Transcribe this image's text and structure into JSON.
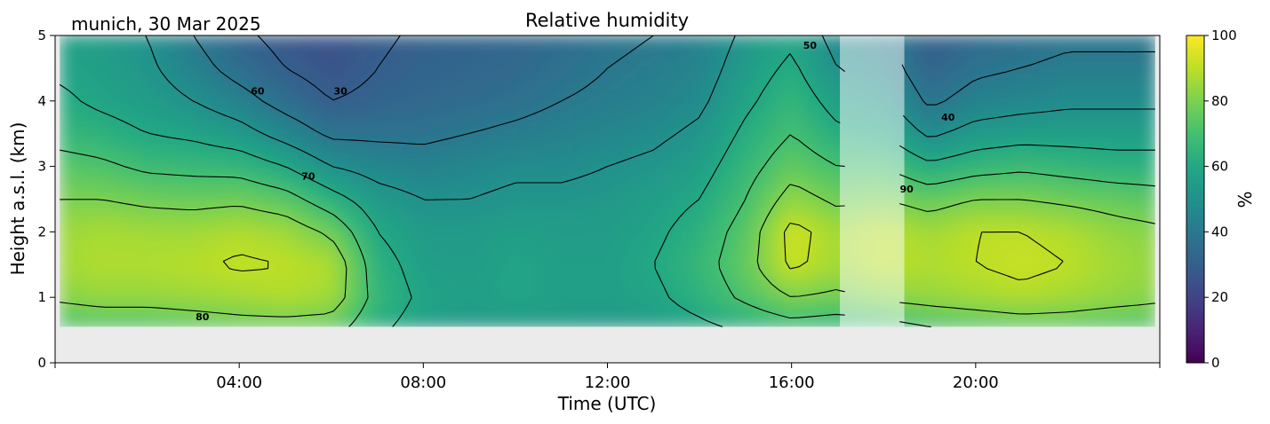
{
  "header": {
    "location_date": "munich, 30 Mar 2025"
  },
  "chart_data": {
    "type": "heatmap",
    "title": "Relative humidity",
    "xlabel": "Time (UTC)",
    "ylabel": "Height a.s.l. (km)",
    "colorbar_label": "%",
    "colormap": "viridis",
    "xlim_hours": [
      0,
      24
    ],
    "ylim_km": [
      0,
      5
    ],
    "clim": [
      0,
      100
    ],
    "x_ticks": [
      {
        "hour": 4,
        "label": "04:00"
      },
      {
        "hour": 8,
        "label": "08:00"
      },
      {
        "hour": 12,
        "label": "12:00"
      },
      {
        "hour": 16,
        "label": "16:00"
      },
      {
        "hour": 20,
        "label": "20:00"
      }
    ],
    "y_ticks": [
      {
        "value": 0,
        "label": "0"
      },
      {
        "value": 1,
        "label": "1"
      },
      {
        "value": 2,
        "label": "2"
      },
      {
        "value": 3,
        "label": "3"
      },
      {
        "value": 4,
        "label": "4"
      },
      {
        "value": 5,
        "label": "5"
      }
    ],
    "colorbar_ticks": [
      {
        "value": 0,
        "label": "0"
      },
      {
        "value": 20,
        "label": "20"
      },
      {
        "value": 40,
        "label": "40"
      },
      {
        "value": 60,
        "label": "60"
      },
      {
        "value": 80,
        "label": "80"
      },
      {
        "value": 100,
        "label": "100"
      }
    ],
    "data_start_hour": 0.1,
    "data_end_hour": 23.9,
    "data_bottom_km": 0.55,
    "masked_period_hours": [
      17.05,
      18.45
    ],
    "contour_levels": [
      30,
      40,
      50,
      60,
      70,
      80,
      90
    ],
    "contour_labels": [
      {
        "text": "30",
        "hour": 6.2,
        "km": 4.1
      },
      {
        "text": "60",
        "hour": 4.4,
        "km": 4.1
      },
      {
        "text": "70",
        "hour": 5.5,
        "km": 2.8
      },
      {
        "text": "80",
        "hour": 3.2,
        "km": 0.65
      },
      {
        "text": "50",
        "hour": 16.4,
        "km": 4.8
      },
      {
        "text": "90",
        "hour": 18.5,
        "km": 2.6
      },
      {
        "text": "40",
        "hour": 19.4,
        "km": 3.7
      }
    ],
    "profile_hours": [
      0.1,
      1,
      2,
      3,
      4,
      5,
      6,
      7,
      8,
      9,
      10,
      11,
      12,
      13,
      14,
      15,
      16,
      17,
      18,
      19,
      20,
      21,
      22,
      23,
      23.9
    ],
    "profile_heights_km": [
      0.55,
      1,
      1.5,
      2,
      2.5,
      3,
      3.5,
      4,
      4.5,
      5
    ],
    "humidity_grid": [
      [
        70,
        82,
        86,
        85,
        80,
        74,
        66,
        62,
        58,
        57
      ],
      [
        72,
        84,
        88,
        87,
        80,
        72,
        64,
        58,
        56,
        55
      ],
      [
        72,
        84,
        88,
        86,
        78,
        68,
        60,
        55,
        52,
        50
      ],
      [
        74,
        85,
        89,
        86,
        77,
        67,
        58,
        50,
        44,
        40
      ],
      [
        76,
        86,
        91,
        88,
        78,
        66,
        54,
        44,
        36,
        32
      ],
      [
        76,
        88,
        90,
        86,
        74,
        60,
        46,
        36,
        30,
        27
      ],
      [
        75,
        86,
        88,
        78,
        64,
        50,
        38,
        30,
        26,
        25
      ],
      [
        62,
        66,
        64,
        60,
        54,
        46,
        38,
        32,
        30,
        29
      ],
      [
        56,
        58,
        56,
        54,
        50,
        44,
        38,
        34,
        32,
        31
      ],
      [
        54,
        56,
        55,
        54,
        50,
        46,
        40,
        35,
        33,
        32
      ],
      [
        54,
        58,
        58,
        56,
        52,
        48,
        42,
        37,
        34,
        33
      ],
      [
        55,
        56,
        56,
        55,
        52,
        48,
        44,
        40,
        37,
        35
      ],
      [
        54,
        56,
        56,
        55,
        53,
        50,
        46,
        42,
        40,
        38
      ],
      [
        55,
        58,
        60,
        58,
        56,
        52,
        48,
        44,
        42,
        40
      ],
      [
        58,
        64,
        66,
        64,
        60,
        56,
        52,
        48,
        45,
        43
      ],
      [
        62,
        72,
        76,
        74,
        70,
        66,
        62,
        58,
        55,
        52
      ],
      [
        66,
        80,
        92,
        93,
        84,
        76,
        70,
        66,
        62,
        58
      ],
      [
        64,
        78,
        86,
        86,
        78,
        70,
        62,
        56,
        50,
        46
      ],
      [
        66,
        82,
        90,
        90,
        80,
        70,
        60,
        52,
        46,
        42
      ],
      [
        70,
        84,
        88,
        86,
        76,
        62,
        48,
        38,
        32,
        30
      ],
      [
        72,
        86,
        90,
        90,
        80,
        66,
        54,
        44,
        38,
        34
      ],
      [
        74,
        88,
        92,
        90,
        80,
        68,
        56,
        46,
        40,
        36
      ],
      [
        74,
        86,
        90,
        88,
        78,
        66,
        56,
        48,
        42,
        38
      ],
      [
        72,
        84,
        86,
        84,
        76,
        64,
        56,
        48,
        42,
        38
      ],
      [
        72,
        82,
        84,
        82,
        74,
        64,
        56,
        48,
        42,
        38
      ]
    ]
  }
}
